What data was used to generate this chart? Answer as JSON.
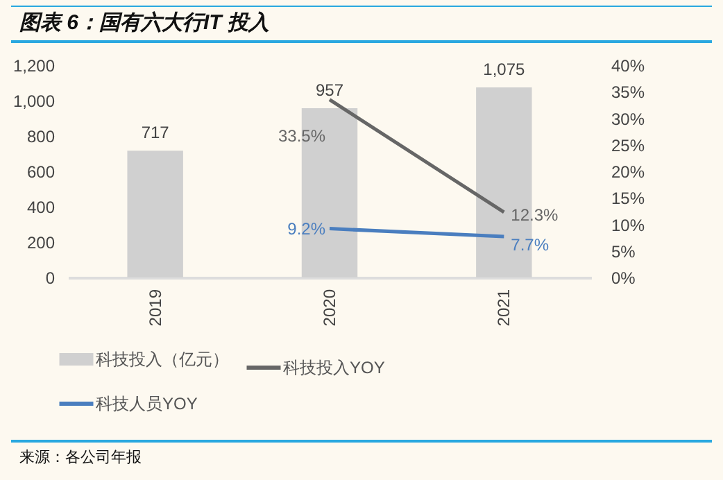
{
  "chart_data": {
    "type": "bar",
    "title": "图表 6：国有六大行IT 投入",
    "categories": [
      "2019",
      "2020",
      "2021"
    ],
    "series": [
      {
        "name": "科技投入（亿元）",
        "color": "#d0d0d0",
        "values": [
          717,
          957,
          1075
        ],
        "value_labels": [
          "717",
          "957",
          "1,075"
        ]
      },
      {
        "name": "科技投入YOY",
        "type": "line",
        "axis": "y2",
        "color": "#666666",
        "values": [
          null,
          33.5,
          12.3
        ],
        "value_labels": [
          null,
          "33.5%",
          "12.3%"
        ]
      },
      {
        "name": "科技人员YOY",
        "type": "line",
        "axis": "y2",
        "color": "#4a7ebf",
        "values": [
          null,
          9.2,
          7.7
        ],
        "value_labels": [
          null,
          "9.2%",
          "7.7%"
        ]
      }
    ],
    "ylim": [
      0,
      1200
    ],
    "yticks": [
      {
        "value": 0,
        "label": "0"
      },
      {
        "value": 200,
        "label": "200"
      },
      {
        "value": 400,
        "label": "400"
      },
      {
        "value": 600,
        "label": "600"
      },
      {
        "value": 800,
        "label": "800"
      },
      {
        "value": 1000,
        "label": "1,000"
      },
      {
        "value": 1200,
        "label": "1,200"
      }
    ],
    "y2lim": [
      0,
      40
    ],
    "y2ticks": [
      {
        "value": 0,
        "label": "0%"
      },
      {
        "value": 5,
        "label": "5%"
      },
      {
        "value": 10,
        "label": "10%"
      },
      {
        "value": 15,
        "label": "15%"
      },
      {
        "value": 20,
        "label": "20%"
      },
      {
        "value": 25,
        "label": "25%"
      },
      {
        "value": 30,
        "label": "30%"
      },
      {
        "value": 35,
        "label": "35%"
      },
      {
        "value": 40,
        "label": "40%"
      }
    ],
    "grid": false,
    "legend": "bottom",
    "annotations": [
      "来源：各公司年报"
    ]
  }
}
